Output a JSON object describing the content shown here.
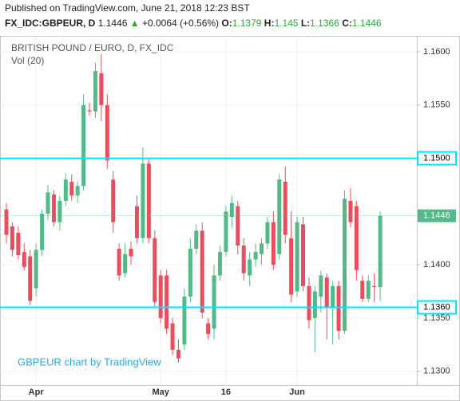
{
  "header": {
    "published": "Published on TradingView.com, June 21, 2018 12:23 BST",
    "symbol": "FX_IDC:GBPEUR, D",
    "change": "+0.0064 (+0.56%)",
    "o_label": "O:",
    "h_label": "H:",
    "l_label": "L:",
    "c_label": "C:"
  },
  "chart_data": {
    "type": "candlestick",
    "title": "BRITISH POUND / EURO, D, FX_IDC",
    "subtitle": "Vol (20)",
    "watermark": "GBPEUR chart by TradingView",
    "up_color": "#53b987",
    "down_color": "#eb4d5c",
    "grid": true,
    "categories": [
      null,
      null,
      null,
      null,
      null,
      "Apr",
      null,
      null,
      null,
      null,
      null,
      null,
      null,
      null,
      null,
      null,
      null,
      null,
      null,
      null,
      null,
      null,
      null,
      null,
      null,
      null,
      "May",
      null,
      null,
      null,
      null,
      null,
      null,
      null,
      null,
      null,
      null,
      "16",
      null,
      null,
      null,
      null,
      null,
      null,
      null,
      null,
      null,
      null,
      null,
      "Jun",
      null,
      null,
      null,
      null,
      null,
      null,
      null,
      null,
      null,
      null,
      null,
      null,
      null,
      null
    ],
    "open": [
      1.1452,
      1.1436,
      1.143,
      1.1412,
      1.1408,
      1.1378,
      1.1414,
      1.1448,
      1.1466,
      1.144,
      1.146,
      1.1478,
      1.1465,
      1.1474,
      1.1545,
      1.1544,
      1.158,
      1.155,
      1.148,
      1.1415,
      1.1392,
      1.1415,
      1.1455,
      1.1425,
      1.1495,
      1.1425,
      1.139,
      1.139,
      1.1345,
      1.132,
      1.1325,
      1.137,
      1.1415,
      1.1432,
      1.1345,
      1.134,
      1.139,
      1.1412,
      1.1445,
      1.1455,
      1.1418,
      1.139,
      1.1405,
      1.141,
      1.142,
      1.144,
      1.141,
      1.1478,
      1.1425,
      1.1375,
      1.1438,
      1.138,
      1.135,
      1.137,
      1.1388,
      1.136,
      1.138,
      1.1338,
      1.146,
      1.1455,
      1.1385,
      1.1368,
      1.138,
      1.1379
    ],
    "high": [
      1.1458,
      1.144,
      1.1436,
      1.142,
      1.1414,
      1.142,
      1.1452,
      1.1475,
      1.147,
      1.1465,
      1.1486,
      1.1485,
      1.1478,
      1.156,
      1.1552,
      1.159,
      1.1598,
      1.156,
      1.1488,
      1.142,
      1.142,
      1.1422,
      1.1465,
      1.151,
      1.15,
      1.1432,
      1.1395,
      1.1395,
      1.135,
      1.133,
      1.1378,
      1.1425,
      1.1438,
      1.144,
      1.135,
      1.14,
      1.1418,
      1.1455,
      1.1465,
      1.146,
      1.1425,
      1.1412,
      1.142,
      1.1425,
      1.1445,
      1.145,
      1.1485,
      1.1492,
      1.145,
      1.1445,
      1.1445,
      1.1388,
      1.138,
      1.1395,
      1.1392,
      1.1385,
      1.1385,
      1.147,
      1.1472,
      1.146,
      1.139,
      1.139,
      1.1392,
      1.145
    ],
    "low": [
      1.142,
      1.1408,
      1.1405,
      1.1395,
      1.1362,
      1.137,
      1.1408,
      1.1442,
      1.1436,
      1.1432,
      1.1455,
      1.146,
      1.1458,
      1.147,
      1.154,
      1.1538,
      1.1535,
      1.149,
      1.143,
      1.1385,
      1.1388,
      1.14,
      1.142,
      1.142,
      1.142,
      1.136,
      1.1345,
      1.1335,
      1.1315,
      1.1308,
      1.132,
      1.1365,
      1.141,
      1.135,
      1.133,
      1.133,
      1.1385,
      1.1408,
      1.1435,
      1.141,
      1.1385,
      1.138,
      1.1398,
      1.14,
      1.1415,
      1.1395,
      1.1405,
      1.142,
      1.1365,
      1.137,
      1.1375,
      1.134,
      1.1318,
      1.1355,
      1.133,
      1.1325,
      1.133,
      1.1335,
      1.1435,
      1.1385,
      1.1365,
      1.1365,
      1.1365,
      1.1366
    ],
    "close": [
      1.1428,
      1.1414,
      1.1409,
      1.1398,
      1.1366,
      1.1414,
      1.1448,
      1.1468,
      1.144,
      1.146,
      1.148,
      1.1465,
      1.1474,
      1.155,
      1.1544,
      1.1582,
      1.155,
      1.1498,
      1.144,
      1.139,
      1.141,
      1.1408,
      1.1425,
      1.1495,
      1.1425,
      1.1365,
      1.135,
      1.134,
      1.132,
      1.1312,
      1.137,
      1.1415,
      1.1432,
      1.1355,
      1.1335,
      1.139,
      1.1412,
      1.145,
      1.1458,
      1.1418,
      1.1392,
      1.1405,
      1.1412,
      1.142,
      1.144,
      1.14,
      1.148,
      1.1428,
      1.1372,
      1.144,
      1.138,
      1.1348,
      1.1375,
      1.139,
      1.136,
      1.138,
      1.1338,
      1.1462,
      1.144,
      1.1395,
      1.1368,
      1.1385,
      1.1379,
      1.1446
    ],
    "ylim": [
      1.1287,
      1.1615
    ],
    "yticks": [
      {
        "value": 1.13,
        "label": "1.1300"
      },
      {
        "value": 1.135,
        "label": "1.1350"
      },
      {
        "value": 1.14,
        "label": "1.1400"
      },
      {
        "value": 1.155,
        "label": "1.1550"
      },
      {
        "value": 1.16,
        "label": "1.1600"
      }
    ],
    "hlines": [
      {
        "value": 1.15,
        "label": "1.1500",
        "color": "#00e5ff"
      },
      {
        "value": 1.136,
        "label": "1.1360",
        "color": "#00e5ff"
      }
    ]
  }
}
